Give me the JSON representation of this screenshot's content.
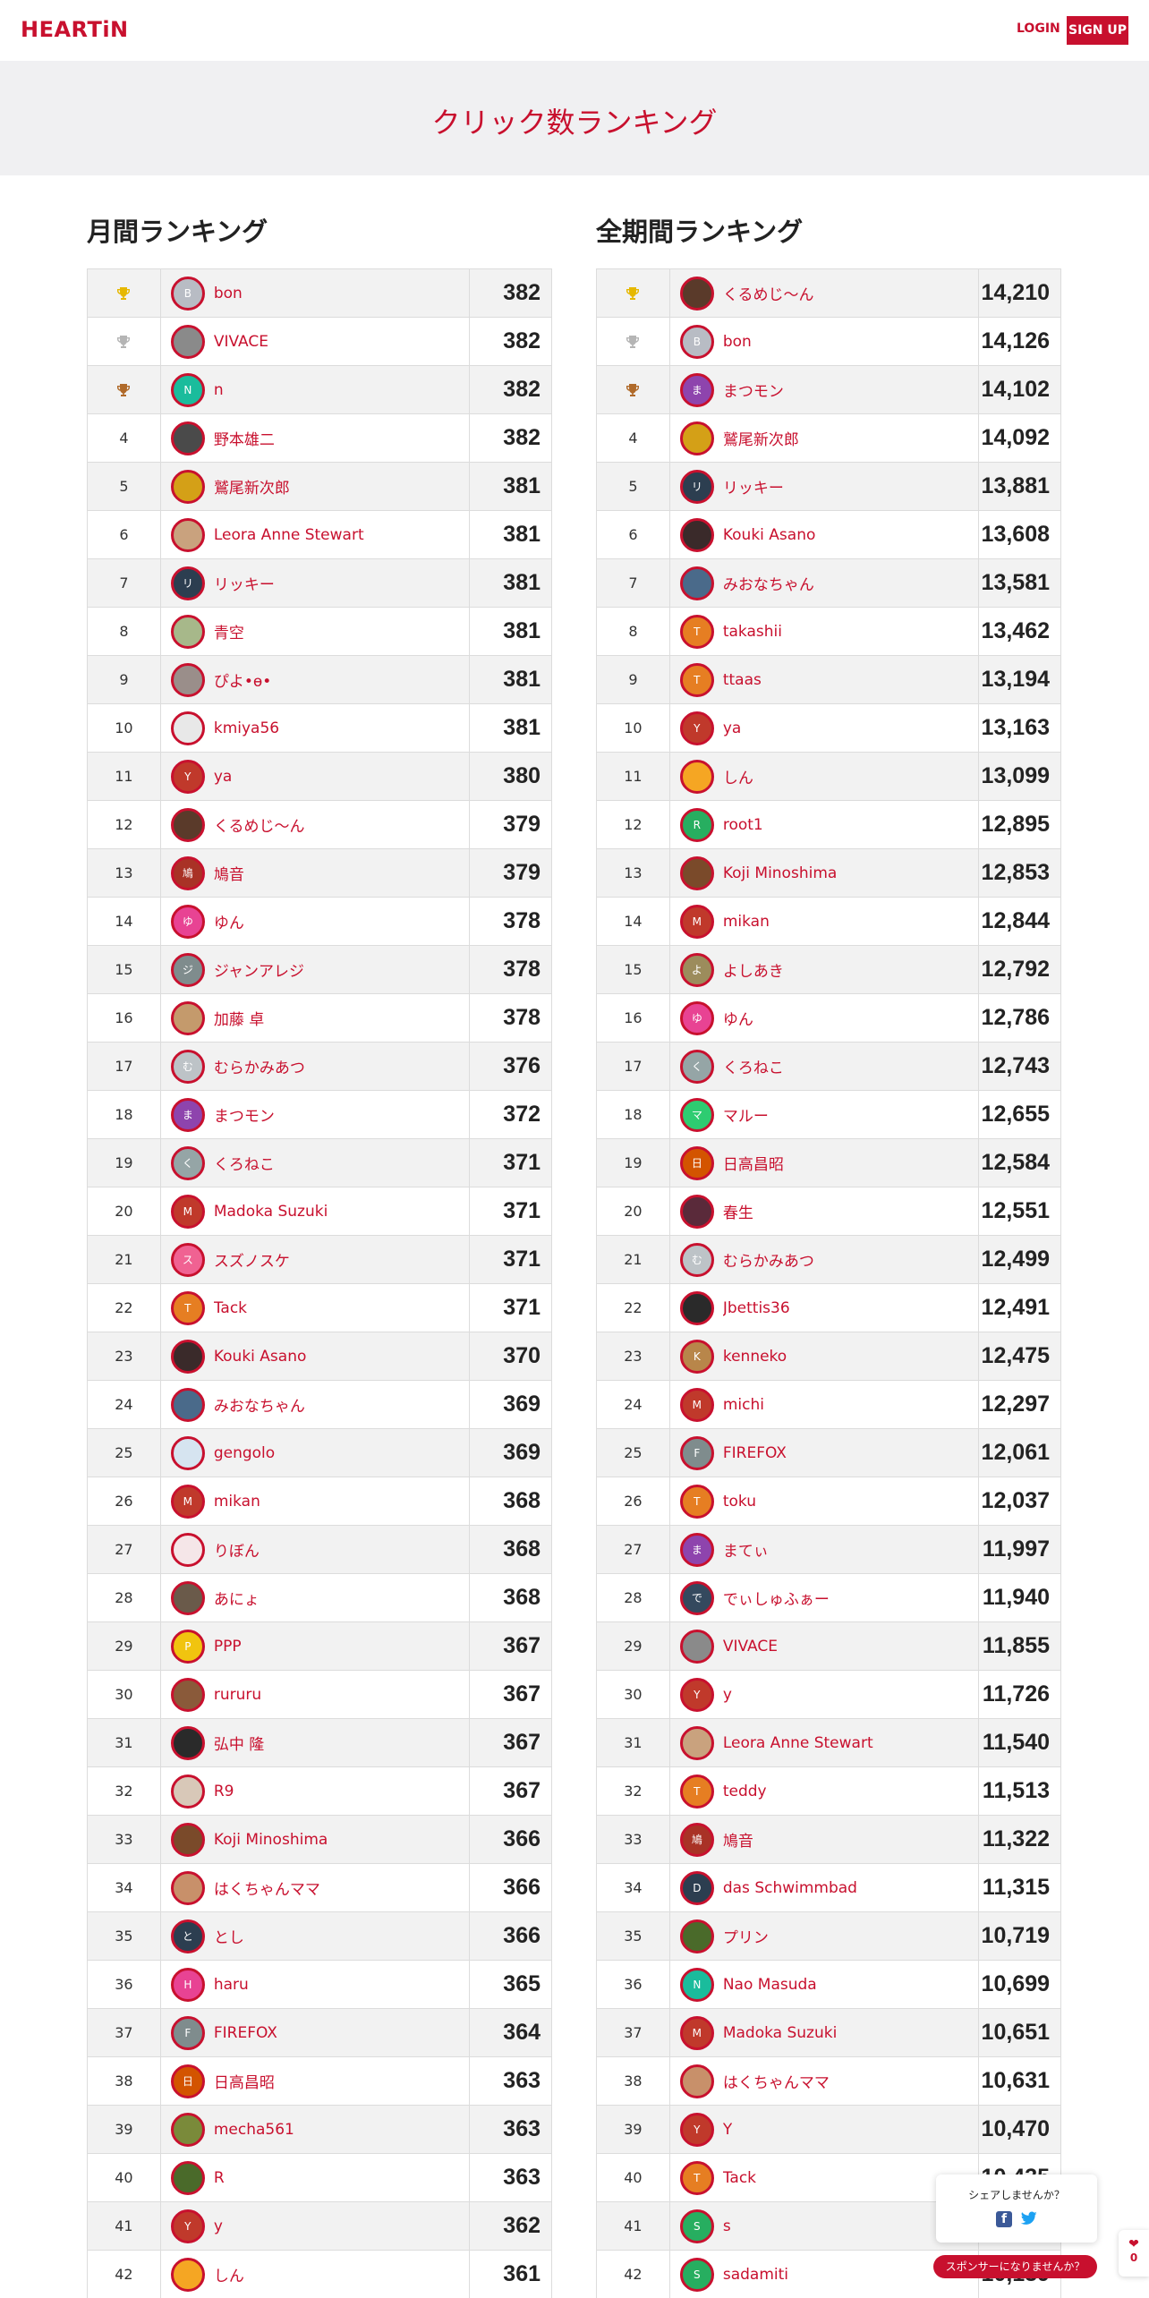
{
  "header": {
    "logo": "HEARTiN",
    "login": "LOGIN",
    "signup": "SIGN UP"
  },
  "hero": {
    "title": "クリック数ランキング"
  },
  "monthly": {
    "title": "月間ランキング",
    "rows": [
      {
        "rank": "1",
        "trophy": "gold",
        "name": "bon",
        "score": "382",
        "avatar": {
          "type": "initial",
          "text": "B",
          "color": "#b8bcc4"
        }
      },
      {
        "rank": "2",
        "trophy": "silver",
        "name": "VIVACE",
        "score": "382",
        "avatar": {
          "type": "photo",
          "color": "#8a8a8a"
        }
      },
      {
        "rank": "3",
        "trophy": "bronze",
        "name": "n",
        "score": "382",
        "avatar": {
          "type": "initial",
          "text": "N",
          "color": "#1abc9c"
        }
      },
      {
        "rank": "4",
        "name": "野本雄二",
        "score": "382",
        "avatar": {
          "type": "photo",
          "color": "#4a4a4a"
        }
      },
      {
        "rank": "5",
        "name": "鷲尾新次郎",
        "score": "381",
        "avatar": {
          "type": "photo",
          "color": "#d4a017"
        }
      },
      {
        "rank": "6",
        "name": "Leora Anne Stewart",
        "score": "381",
        "avatar": {
          "type": "photo",
          "color": "#c9a27e"
        }
      },
      {
        "rank": "7",
        "name": "リッキー",
        "score": "381",
        "avatar": {
          "type": "initial",
          "text": "リ",
          "color": "#2c3e50"
        }
      },
      {
        "rank": "8",
        "name": "青空",
        "score": "381",
        "avatar": {
          "type": "photo",
          "color": "#a7b88a"
        }
      },
      {
        "rank": "9",
        "name": "ぴよ•ө•",
        "score": "381",
        "avatar": {
          "type": "photo",
          "color": "#9a8e8a"
        }
      },
      {
        "rank": "10",
        "name": "kmiya56",
        "score": "381",
        "avatar": {
          "type": "photo",
          "color": "#e8e8e8"
        }
      },
      {
        "rank": "11",
        "name": "ya",
        "score": "380",
        "avatar": {
          "type": "initial",
          "text": "Y",
          "color": "#c0392b"
        }
      },
      {
        "rank": "12",
        "name": "くるめじ～ん",
        "score": "379",
        "avatar": {
          "type": "photo",
          "color": "#5a3a2a"
        }
      },
      {
        "rank": "13",
        "name": "鳩音",
        "score": "379",
        "avatar": {
          "type": "initial",
          "text": "鳩",
          "color": "#a93226"
        }
      },
      {
        "rank": "14",
        "name": "ゆん",
        "score": "378",
        "avatar": {
          "type": "initial",
          "text": "ゆ",
          "color": "#e84393"
        }
      },
      {
        "rank": "15",
        "name": "ジャンアレジ",
        "score": "378",
        "avatar": {
          "type": "initial",
          "text": "ジ",
          "color": "#7f8c8d"
        }
      },
      {
        "rank": "16",
        "name": "加藤 卓",
        "score": "378",
        "avatar": {
          "type": "photo",
          "color": "#c49a6c"
        }
      },
      {
        "rank": "17",
        "name": "むらかみあつ",
        "score": "376",
        "avatar": {
          "type": "initial",
          "text": "む",
          "color": "#bdc3c7"
        }
      },
      {
        "rank": "18",
        "name": "まつモン",
        "score": "372",
        "avatar": {
          "type": "initial",
          "text": "ま",
          "color": "#8e44ad"
        }
      },
      {
        "rank": "19",
        "name": "くろねこ",
        "score": "371",
        "avatar": {
          "type": "initial",
          "text": "く",
          "color": "#95a5a6"
        }
      },
      {
        "rank": "20",
        "name": "Madoka Suzuki",
        "score": "371",
        "avatar": {
          "type": "initial",
          "text": "M",
          "color": "#c0392b"
        }
      },
      {
        "rank": "21",
        "name": "スズノスケ",
        "score": "371",
        "avatar": {
          "type": "initial",
          "text": "ス",
          "color": "#f06292"
        }
      },
      {
        "rank": "22",
        "name": "Tack",
        "score": "371",
        "avatar": {
          "type": "initial",
          "text": "T",
          "color": "#e67e22"
        }
      },
      {
        "rank": "23",
        "name": "Kouki Asano",
        "score": "370",
        "avatar": {
          "type": "photo",
          "color": "#3a2a2a"
        }
      },
      {
        "rank": "24",
        "name": "みおなちゃん",
        "score": "369",
        "avatar": {
          "type": "photo",
          "color": "#4a6a8a"
        }
      },
      {
        "rank": "25",
        "name": "gengolo",
        "score": "369",
        "avatar": {
          "type": "photo",
          "color": "#d6e4f0"
        }
      },
      {
        "rank": "26",
        "name": "mikan",
        "score": "368",
        "avatar": {
          "type": "initial",
          "text": "M",
          "color": "#c0392b"
        }
      },
      {
        "rank": "27",
        "name": "りぼん",
        "score": "368",
        "avatar": {
          "type": "photo",
          "color": "#f5e6e8"
        }
      },
      {
        "rank": "28",
        "name": "あにょ",
        "score": "368",
        "avatar": {
          "type": "photo",
          "color": "#6a5a4a"
        }
      },
      {
        "rank": "29",
        "name": "PPP",
        "score": "367",
        "avatar": {
          "type": "initial",
          "text": "P",
          "color": "#f1c40f"
        }
      },
      {
        "rank": "30",
        "name": "rururu",
        "score": "367",
        "avatar": {
          "type": "photo",
          "color": "#8a5a3a"
        }
      },
      {
        "rank": "31",
        "name": "弘中 隆",
        "score": "367",
        "avatar": {
          "type": "photo",
          "color": "#2a2a2a"
        }
      },
      {
        "rank": "32",
        "name": "R9",
        "score": "367",
        "avatar": {
          "type": "photo",
          "color": "#d8c8b8"
        }
      },
      {
        "rank": "33",
        "name": "Koji Minoshima",
        "score": "366",
        "avatar": {
          "type": "photo",
          "color": "#7a4a2a"
        }
      },
      {
        "rank": "34",
        "name": "はくちゃんママ",
        "score": "366",
        "avatar": {
          "type": "photo",
          "color": "#c8906a"
        }
      },
      {
        "rank": "35",
        "name": "とし",
        "score": "366",
        "avatar": {
          "type": "initial",
          "text": "と",
          "color": "#2c3e50"
        }
      },
      {
        "rank": "36",
        "name": "haru",
        "score": "365",
        "avatar": {
          "type": "initial",
          "text": "H",
          "color": "#e84393"
        }
      },
      {
        "rank": "37",
        "name": "FIREFOX",
        "score": "364",
        "avatar": {
          "type": "initial",
          "text": "F",
          "color": "#7f8c8d"
        }
      },
      {
        "rank": "38",
        "name": "日高昌昭",
        "score": "363",
        "avatar": {
          "type": "initial",
          "text": "日",
          "color": "#d35400"
        }
      },
      {
        "rank": "39",
        "name": "mecha561",
        "score": "363",
        "avatar": {
          "type": "photo",
          "color": "#7a8a3a"
        }
      },
      {
        "rank": "40",
        "name": "R",
        "score": "363",
        "avatar": {
          "type": "photo",
          "color": "#4a6a2a"
        }
      },
      {
        "rank": "41",
        "name": "y",
        "score": "362",
        "avatar": {
          "type": "initial",
          "text": "Y",
          "color": "#c0392b"
        }
      },
      {
        "rank": "42",
        "name": "しん",
        "score": "361",
        "avatar": {
          "type": "photo",
          "color": "#f5a623"
        }
      }
    ]
  },
  "alltime": {
    "title": "全期間ランキング",
    "rows": [
      {
        "rank": "1",
        "trophy": "gold",
        "name": "くるめじ～ん",
        "score": "14,210",
        "avatar": {
          "type": "photo",
          "color": "#5a3a2a"
        }
      },
      {
        "rank": "2",
        "trophy": "silver",
        "name": "bon",
        "score": "14,126",
        "avatar": {
          "type": "initial",
          "text": "B",
          "color": "#b8bcc4"
        }
      },
      {
        "rank": "3",
        "trophy": "bronze",
        "name": "まつモン",
        "score": "14,102",
        "avatar": {
          "type": "initial",
          "text": "ま",
          "color": "#8e44ad"
        }
      },
      {
        "rank": "4",
        "name": "鷲尾新次郎",
        "score": "14,092",
        "avatar": {
          "type": "photo",
          "color": "#d4a017"
        }
      },
      {
        "rank": "5",
        "name": "リッキー",
        "score": "13,881",
        "avatar": {
          "type": "initial",
          "text": "リ",
          "color": "#2c3e50"
        }
      },
      {
        "rank": "6",
        "name": "Kouki Asano",
        "score": "13,608",
        "avatar": {
          "type": "photo",
          "color": "#3a2a2a"
        }
      },
      {
        "rank": "7",
        "name": "みおなちゃん",
        "score": "13,581",
        "avatar": {
          "type": "photo",
          "color": "#4a6a8a"
        }
      },
      {
        "rank": "8",
        "name": "takashii",
        "score": "13,462",
        "avatar": {
          "type": "initial",
          "text": "T",
          "color": "#e67e22"
        }
      },
      {
        "rank": "9",
        "name": "ttaas",
        "score": "13,194",
        "avatar": {
          "type": "initial",
          "text": "T",
          "color": "#e67e22"
        }
      },
      {
        "rank": "10",
        "name": "ya",
        "score": "13,163",
        "avatar": {
          "type": "initial",
          "text": "Y",
          "color": "#c0392b"
        }
      },
      {
        "rank": "11",
        "name": "しん",
        "score": "13,099",
        "avatar": {
          "type": "photo",
          "color": "#f5a623"
        }
      },
      {
        "rank": "12",
        "name": "root1",
        "score": "12,895",
        "avatar": {
          "type": "initial",
          "text": "R",
          "color": "#27ae60"
        }
      },
      {
        "rank": "13",
        "name": "Koji Minoshima",
        "score": "12,853",
        "avatar": {
          "type": "photo",
          "color": "#7a4a2a"
        }
      },
      {
        "rank": "14",
        "name": "mikan",
        "score": "12,844",
        "avatar": {
          "type": "initial",
          "text": "M",
          "color": "#c0392b"
        }
      },
      {
        "rank": "15",
        "name": "よしあき",
        "score": "12,792",
        "avatar": {
          "type": "initial",
          "text": "よ",
          "color": "#9c8c5c"
        }
      },
      {
        "rank": "16",
        "name": "ゆん",
        "score": "12,786",
        "avatar": {
          "type": "initial",
          "text": "ゆ",
          "color": "#e84393"
        }
      },
      {
        "rank": "17",
        "name": "くろねこ",
        "score": "12,743",
        "avatar": {
          "type": "initial",
          "text": "く",
          "color": "#95a5a6"
        }
      },
      {
        "rank": "18",
        "name": "マルー",
        "score": "12,655",
        "avatar": {
          "type": "initial",
          "text": "マ",
          "color": "#2ecc71"
        }
      },
      {
        "rank": "19",
        "name": "日高昌昭",
        "score": "12,584",
        "avatar": {
          "type": "initial",
          "text": "日",
          "color": "#d35400"
        }
      },
      {
        "rank": "20",
        "name": "春生",
        "score": "12,551",
        "avatar": {
          "type": "photo",
          "color": "#5a2a3a"
        }
      },
      {
        "rank": "21",
        "name": "むらかみあつ",
        "score": "12,499",
        "avatar": {
          "type": "initial",
          "text": "む",
          "color": "#bdc3c7"
        }
      },
      {
        "rank": "22",
        "name": "Jbettis36",
        "score": "12,491",
        "avatar": {
          "type": "photo",
          "color": "#2a2a2a"
        }
      },
      {
        "rank": "23",
        "name": "kenneko",
        "score": "12,475",
        "avatar": {
          "type": "initial",
          "text": "K",
          "color": "#b8864a"
        }
      },
      {
        "rank": "24",
        "name": "michi",
        "score": "12,297",
        "avatar": {
          "type": "initial",
          "text": "M",
          "color": "#c0392b"
        }
      },
      {
        "rank": "25",
        "name": "FIREFOX",
        "score": "12,061",
        "avatar": {
          "type": "initial",
          "text": "F",
          "color": "#7f8c8d"
        }
      },
      {
        "rank": "26",
        "name": "toku",
        "score": "12,037",
        "avatar": {
          "type": "initial",
          "text": "T",
          "color": "#e67e22"
        }
      },
      {
        "rank": "27",
        "name": "まてぃ",
        "score": "11,997",
        "avatar": {
          "type": "initial",
          "text": "ま",
          "color": "#8e44ad"
        }
      },
      {
        "rank": "28",
        "name": "でぃしゅふぁー",
        "score": "11,940",
        "avatar": {
          "type": "initial",
          "text": "で",
          "color": "#34495e"
        }
      },
      {
        "rank": "29",
        "name": "VIVACE",
        "score": "11,855",
        "avatar": {
          "type": "photo",
          "color": "#8a8a8a"
        }
      },
      {
        "rank": "30",
        "name": "y",
        "score": "11,726",
        "avatar": {
          "type": "initial",
          "text": "Y",
          "color": "#c0392b"
        }
      },
      {
        "rank": "31",
        "name": "Leora Anne Stewart",
        "score": "11,540",
        "avatar": {
          "type": "photo",
          "color": "#c9a27e"
        }
      },
      {
        "rank": "32",
        "name": "teddy",
        "score": "11,513",
        "avatar": {
          "type": "initial",
          "text": "T",
          "color": "#e67e22"
        }
      },
      {
        "rank": "33",
        "name": "鳩音",
        "score": "11,322",
        "avatar": {
          "type": "initial",
          "text": "鳩",
          "color": "#a93226"
        }
      },
      {
        "rank": "34",
        "name": "das Schwimmbad",
        "score": "11,315",
        "avatar": {
          "type": "initial",
          "text": "D",
          "color": "#2c3e50"
        }
      },
      {
        "rank": "35",
        "name": "プリン",
        "score": "10,719",
        "avatar": {
          "type": "photo",
          "color": "#4a6a2a"
        }
      },
      {
        "rank": "36",
        "name": "Nao Masuda",
        "score": "10,699",
        "avatar": {
          "type": "initial",
          "text": "N",
          "color": "#1abc9c"
        }
      },
      {
        "rank": "37",
        "name": "Madoka Suzuki",
        "score": "10,651",
        "avatar": {
          "type": "initial",
          "text": "M",
          "color": "#c0392b"
        }
      },
      {
        "rank": "38",
        "name": "はくちゃんママ",
        "score": "10,631",
        "avatar": {
          "type": "photo",
          "color": "#c8906a"
        }
      },
      {
        "rank": "39",
        "name": "Y",
        "score": "10,470",
        "avatar": {
          "type": "initial",
          "text": "Y",
          "color": "#c0392b"
        }
      },
      {
        "rank": "40",
        "name": "Tack",
        "score": "10,435",
        "avatar": {
          "type": "initial",
          "text": "T",
          "color": "#e67e22"
        }
      },
      {
        "rank": "41",
        "name": "s",
        "score": "",
        "avatar": {
          "type": "initial",
          "text": "S",
          "color": "#27ae60"
        }
      },
      {
        "rank": "42",
        "name": "sadamiti",
        "score": "10,139",
        "avatar": {
          "type": "initial",
          "text": "S",
          "color": "#27ae60"
        }
      }
    ]
  },
  "share": {
    "prompt": "シェアしませんか？",
    "facebook_icon": "facebook-icon",
    "twitter_icon": "twitter-icon"
  },
  "sponsor": {
    "label": "スポンサーになりませんか？"
  },
  "like": {
    "icon": "heart-icon",
    "count": "0"
  },
  "colors": {
    "brand": "#c8102e",
    "gold": "#e6b800",
    "silver": "#b5b5b5",
    "bronze": "#b06a2a"
  }
}
